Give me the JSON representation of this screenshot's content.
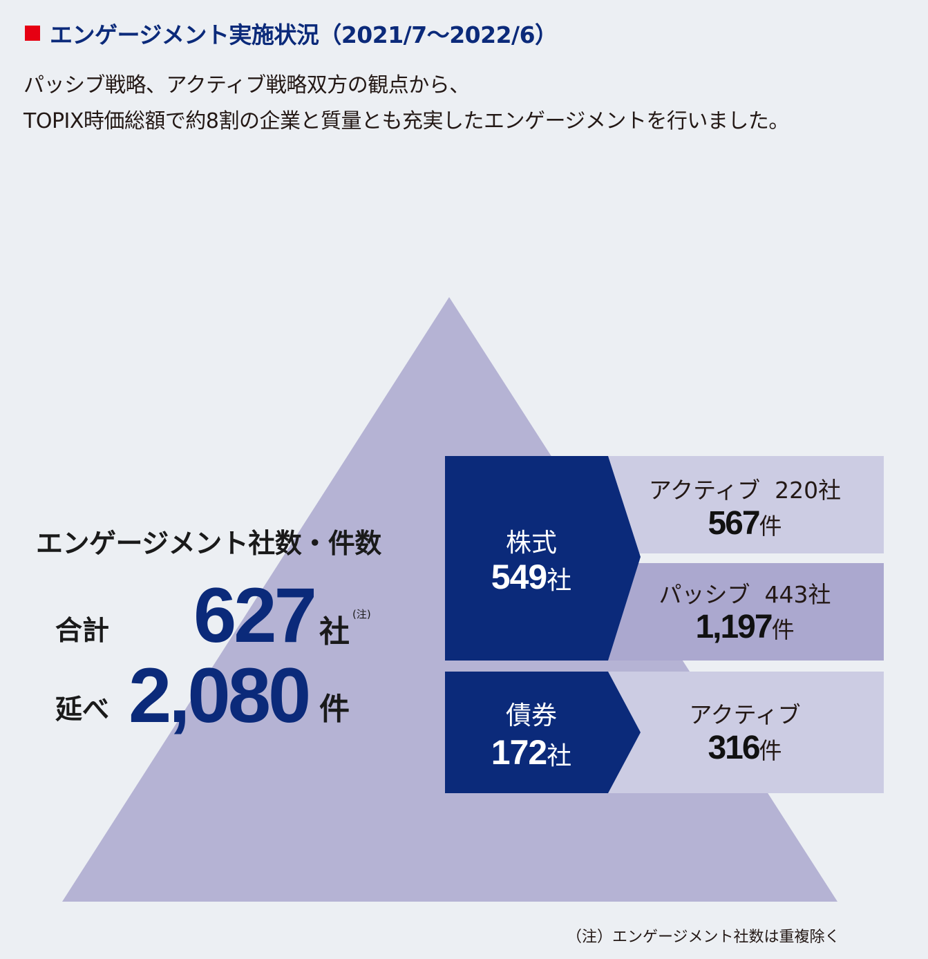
{
  "header": {
    "title": "エンゲージメント実施状況（2021/7〜2022/6）",
    "desc_line1": "パッシブ戦略、アクティブ戦略双方の観点から、",
    "desc_line2": "TOPIX時価総額で約8割の企業と質量とも充実したエンゲージメントを行いました。"
  },
  "summary": {
    "heading": "エンゲージメント社数・件数",
    "total_label": "合計",
    "total_value": "627",
    "total_unit": "社",
    "total_note": "(注)",
    "cumulative_label": "延べ",
    "cumulative_value": "2,080",
    "cumulative_unit": "件"
  },
  "equity": {
    "label": "株式",
    "companies": "549",
    "unit": "社",
    "active": {
      "label": "アクティブ",
      "companies": "220社",
      "cases": "567",
      "cases_unit": "件"
    },
    "passive": {
      "label": "パッシブ",
      "companies": "443社",
      "cases": "1,197",
      "cases_unit": "件"
    }
  },
  "bond": {
    "label": "債券",
    "companies": "172",
    "unit": "社",
    "active": {
      "label": "アクティブ",
      "cases": "316",
      "cases_unit": "件"
    }
  },
  "footnote": "（注）エンゲージメント社数は重複除く",
  "colors": {
    "background": "#eceff3",
    "triangle": "#b5b3d4",
    "navy": "#0b2a7a",
    "light_box": "#cccce3",
    "mid_box": "#aba8cf",
    "red_marker": "#e60012"
  }
}
